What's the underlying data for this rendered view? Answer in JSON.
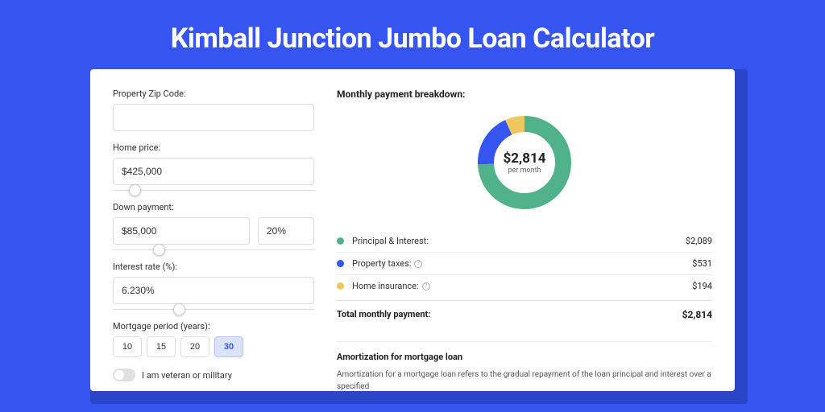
{
  "page": {
    "title": "Kimball Junction Jumbo Loan Calculator",
    "bg_color": "#3655f0",
    "shadow_color": "#2945c8"
  },
  "form": {
    "zip": {
      "label": "Property Zip Code:",
      "value": ""
    },
    "home_price": {
      "label": "Home price:",
      "value": "$425,000",
      "slider_pct": 8
    },
    "down_payment": {
      "label": "Down payment:",
      "value": "$85,000",
      "pct_value": "20%",
      "slider_pct": 20
    },
    "interest_rate": {
      "label": "Interest rate (%):",
      "value": "6.230%",
      "slider_pct": 30
    },
    "period": {
      "label": "Mortgage period (years):",
      "options": [
        "10",
        "15",
        "20",
        "30"
      ],
      "selected": "30"
    },
    "veteran": {
      "label": "I am veteran or military"
    }
  },
  "breakdown": {
    "title": "Monthly payment breakdown:",
    "donut": {
      "amount": "$2,814",
      "sub": "per month",
      "slices": [
        {
          "color": "#4fb28a",
          "pct": 74.2
        },
        {
          "color": "#3655f0",
          "pct": 18.9
        },
        {
          "color": "#efc75e",
          "pct": 6.9
        }
      ],
      "stroke_width": 20
    },
    "items": [
      {
        "label": "Principal & Interest:",
        "value": "$2,089",
        "color": "#4fb28a",
        "info": false
      },
      {
        "label": "Property taxes:",
        "value": "$531",
        "color": "#3655f0",
        "info": true
      },
      {
        "label": "Home insurance:",
        "value": "$194",
        "color": "#efc75e",
        "info": true
      }
    ],
    "total": {
      "label": "Total monthly payment:",
      "value": "$2,814"
    }
  },
  "amortization": {
    "title": "Amortization for mortgage loan",
    "text": "Amortization for a mortgage loan refers to the gradual repayment of the loan principal and interest over a specified"
  }
}
